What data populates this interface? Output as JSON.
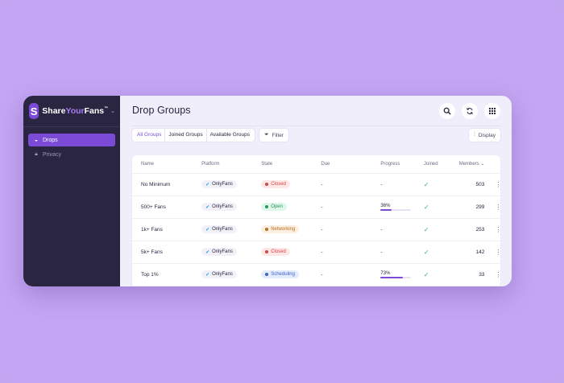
{
  "brand": {
    "logo_letter": "S",
    "name_part1": "Share",
    "name_part2": "Your",
    "name_part3": "Fans",
    "trademark": "™",
    "menu_icon": "chevron-down-icon"
  },
  "sidebar": {
    "items": [
      {
        "label": "Drops",
        "icon": "drop-icon",
        "active": true
      },
      {
        "label": "Privacy",
        "icon": "lock-icon",
        "active": false
      }
    ]
  },
  "header": {
    "title": "Drop Groups",
    "icons": [
      "search-icon",
      "refresh-icon",
      "grid-icon"
    ]
  },
  "toolbar": {
    "tabs": [
      {
        "label": "All Groups",
        "active": true
      },
      {
        "label": "Joined Groups",
        "active": false
      },
      {
        "label": "Available Groups",
        "active": false
      }
    ],
    "filter_label": "Filter",
    "display_label": "Display"
  },
  "table": {
    "columns": [
      "Name",
      "Platform",
      "State",
      "Due",
      "Progress",
      "Joined",
      "Members"
    ],
    "rows": [
      {
        "name": "No Minimum",
        "platform": "OnlyFans",
        "state": "Closed",
        "state_color": "#d64545",
        "state_bg": "#fde7e7",
        "due": "-",
        "progress": "-",
        "progress_value": null,
        "joined": "✓",
        "members": "503"
      },
      {
        "name": "500+ Fans",
        "platform": "OnlyFans",
        "state": "Open",
        "state_color": "#1f9b57",
        "state_bg": "#e1f6ea",
        "due": "-",
        "progress": "36%",
        "progress_value": 0.36,
        "joined": "✓",
        "members": "299"
      },
      {
        "name": "1k+ Fans",
        "platform": "OnlyFans",
        "state": "Networking",
        "state_color": "#b86e22",
        "state_bg": "#fbefe2",
        "due": "-",
        "progress": "-",
        "progress_value": null,
        "joined": "✓",
        "members": "253"
      },
      {
        "name": "5k+ Fans",
        "platform": "OnlyFans",
        "state": "Closed",
        "state_color": "#d64545",
        "state_bg": "#fde7e7",
        "due": "-",
        "progress": "-",
        "progress_value": null,
        "joined": "✓",
        "members": "142"
      },
      {
        "name": "Top 1%",
        "platform": "OnlyFans",
        "state": "Scheduling",
        "state_color": "#3c63c9",
        "state_bg": "#e4ebfb",
        "due": "-",
        "progress": "73%",
        "progress_value": 0.73,
        "joined": "✓",
        "members": "33"
      }
    ]
  },
  "colors": {
    "accent": "#7b4bd8",
    "sidebar_bg": "#2a2540",
    "background": "#c4a5f3"
  }
}
